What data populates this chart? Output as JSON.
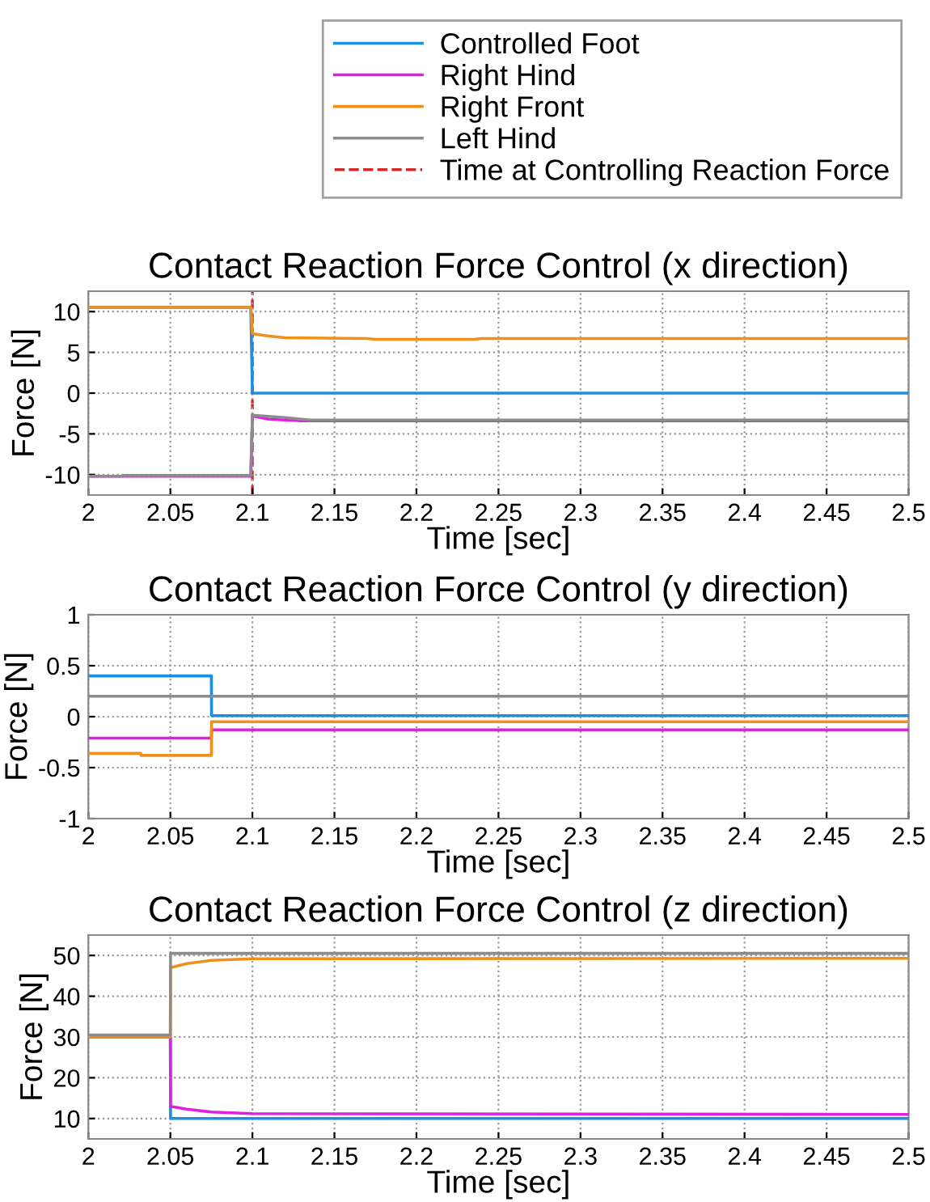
{
  "chart_data": [
    {
      "type": "line",
      "title": "Contact Reaction Force Control (x direction)",
      "xlabel": "Time [sec]",
      "ylabel": "Force [N]",
      "xlim": [
        2,
        2.5
      ],
      "xticks": [
        2,
        2.05,
        2.1,
        2.15,
        2.2,
        2.25,
        2.3,
        2.35,
        2.4,
        2.45,
        2.5
      ],
      "ylim": [
        -12.5,
        12.5
      ],
      "yticks": [
        -10,
        -5,
        0,
        5,
        10
      ],
      "grid": true,
      "legend": "top right",
      "line_style": "solid",
      "ref_lines": [
        {
          "axis": "x",
          "value": 2.1,
          "label": "Time at Controlling Reaction Force",
          "color": "#d62728",
          "line_style": "dashed"
        }
      ],
      "series": [
        {
          "name": "Controlled Foot",
          "color": "#1f8ee0",
          "x": [
            2,
            2.099,
            2.1,
            2.5
          ],
          "values": [
            10.5,
            10.5,
            0,
            0
          ]
        },
        {
          "name": "Right Hind",
          "color": "#e020e0",
          "x": [
            2,
            2.099,
            2.1,
            2.11,
            2.13,
            2.5
          ],
          "values": [
            -10.2,
            -10.2,
            -2.8,
            -3.2,
            -3.4,
            -3.4
          ]
        },
        {
          "name": "Right Front",
          "color": "#f0901a",
          "x": [
            2,
            2.099,
            2.1,
            2.11,
            2.12,
            2.17,
            2.175,
            2.235,
            2.24,
            2.5
          ],
          "values": [
            10.5,
            10.5,
            7.3,
            7.0,
            6.8,
            6.7,
            6.6,
            6.6,
            6.7,
            6.7
          ]
        },
        {
          "name": "Left Hind",
          "color": "#8c8c8c",
          "x": [
            2,
            2.02,
            2.021,
            2.099,
            2.1,
            2.12,
            2.135,
            2.5
          ],
          "values": [
            -10.2,
            -10.2,
            -10.1,
            -10.1,
            -2.7,
            -3.0,
            -3.3,
            -3.3
          ]
        }
      ]
    },
    {
      "type": "line",
      "title": "Contact Reaction Force Control (y direction)",
      "xlabel": "Time [sec]",
      "ylabel": "Force [N]",
      "xlim": [
        2,
        2.5
      ],
      "xticks": [
        2,
        2.05,
        2.1,
        2.15,
        2.2,
        2.25,
        2.3,
        2.35,
        2.4,
        2.45,
        2.5
      ],
      "ylim": [
        -1,
        1
      ],
      "yticks": [
        -1,
        -0.5,
        0,
        0.5,
        1
      ],
      "grid": true,
      "line_style": "solid",
      "series": [
        {
          "color": "#1f8ee0",
          "x": [
            2,
            2.075,
            2.0751,
            2.5
          ],
          "values": [
            0.4,
            0.4,
            0.01,
            0.01
          ]
        },
        {
          "color": "#e020e0",
          "x": [
            2,
            2.075,
            2.0751,
            2.5
          ],
          "values": [
            -0.21,
            -0.21,
            -0.13,
            -0.13
          ]
        },
        {
          "color": "#f0901a",
          "x": [
            2,
            2.032,
            2.0321,
            2.075,
            2.0751,
            2.5
          ],
          "values": [
            -0.36,
            -0.36,
            -0.38,
            -0.38,
            -0.05,
            -0.05
          ]
        },
        {
          "color": "#8c8c8c",
          "x": [
            2,
            2.5
          ],
          "values": [
            0.2,
            0.2
          ]
        }
      ]
    },
    {
      "type": "line",
      "title": "Contact Reaction Force Control (z direction)",
      "xlabel": "Time [sec]",
      "ylabel": "Force [N]",
      "xlim": [
        2,
        2.5
      ],
      "xticks": [
        2,
        2.05,
        2.1,
        2.15,
        2.2,
        2.25,
        2.3,
        2.35,
        2.4,
        2.45,
        2.5
      ],
      "ylim": [
        5,
        55
      ],
      "yticks": [
        10,
        20,
        30,
        40,
        50
      ],
      "grid": true,
      "line_style": "solid",
      "series": [
        {
          "color": "#1f8ee0",
          "x": [
            2,
            2.05,
            2.0501,
            2.5
          ],
          "values": [
            30,
            30,
            10,
            10
          ]
        },
        {
          "color": "#e020e0",
          "x": [
            2,
            2.05,
            2.0501,
            2.06,
            2.075,
            2.1,
            2.5
          ],
          "values": [
            30,
            30,
            13,
            12.3,
            11.6,
            11.2,
            11
          ]
        },
        {
          "color": "#f0901a",
          "x": [
            2,
            2.05,
            2.0501,
            2.06,
            2.075,
            2.1,
            2.5
          ],
          "values": [
            30,
            30,
            47,
            48,
            48.8,
            49.2,
            49.3
          ]
        },
        {
          "color": "#8c8c8c",
          "x": [
            2,
            2.05,
            2.0501,
            2.5
          ],
          "values": [
            30.5,
            30.5,
            50.5,
            50.5
          ]
        }
      ]
    }
  ]
}
